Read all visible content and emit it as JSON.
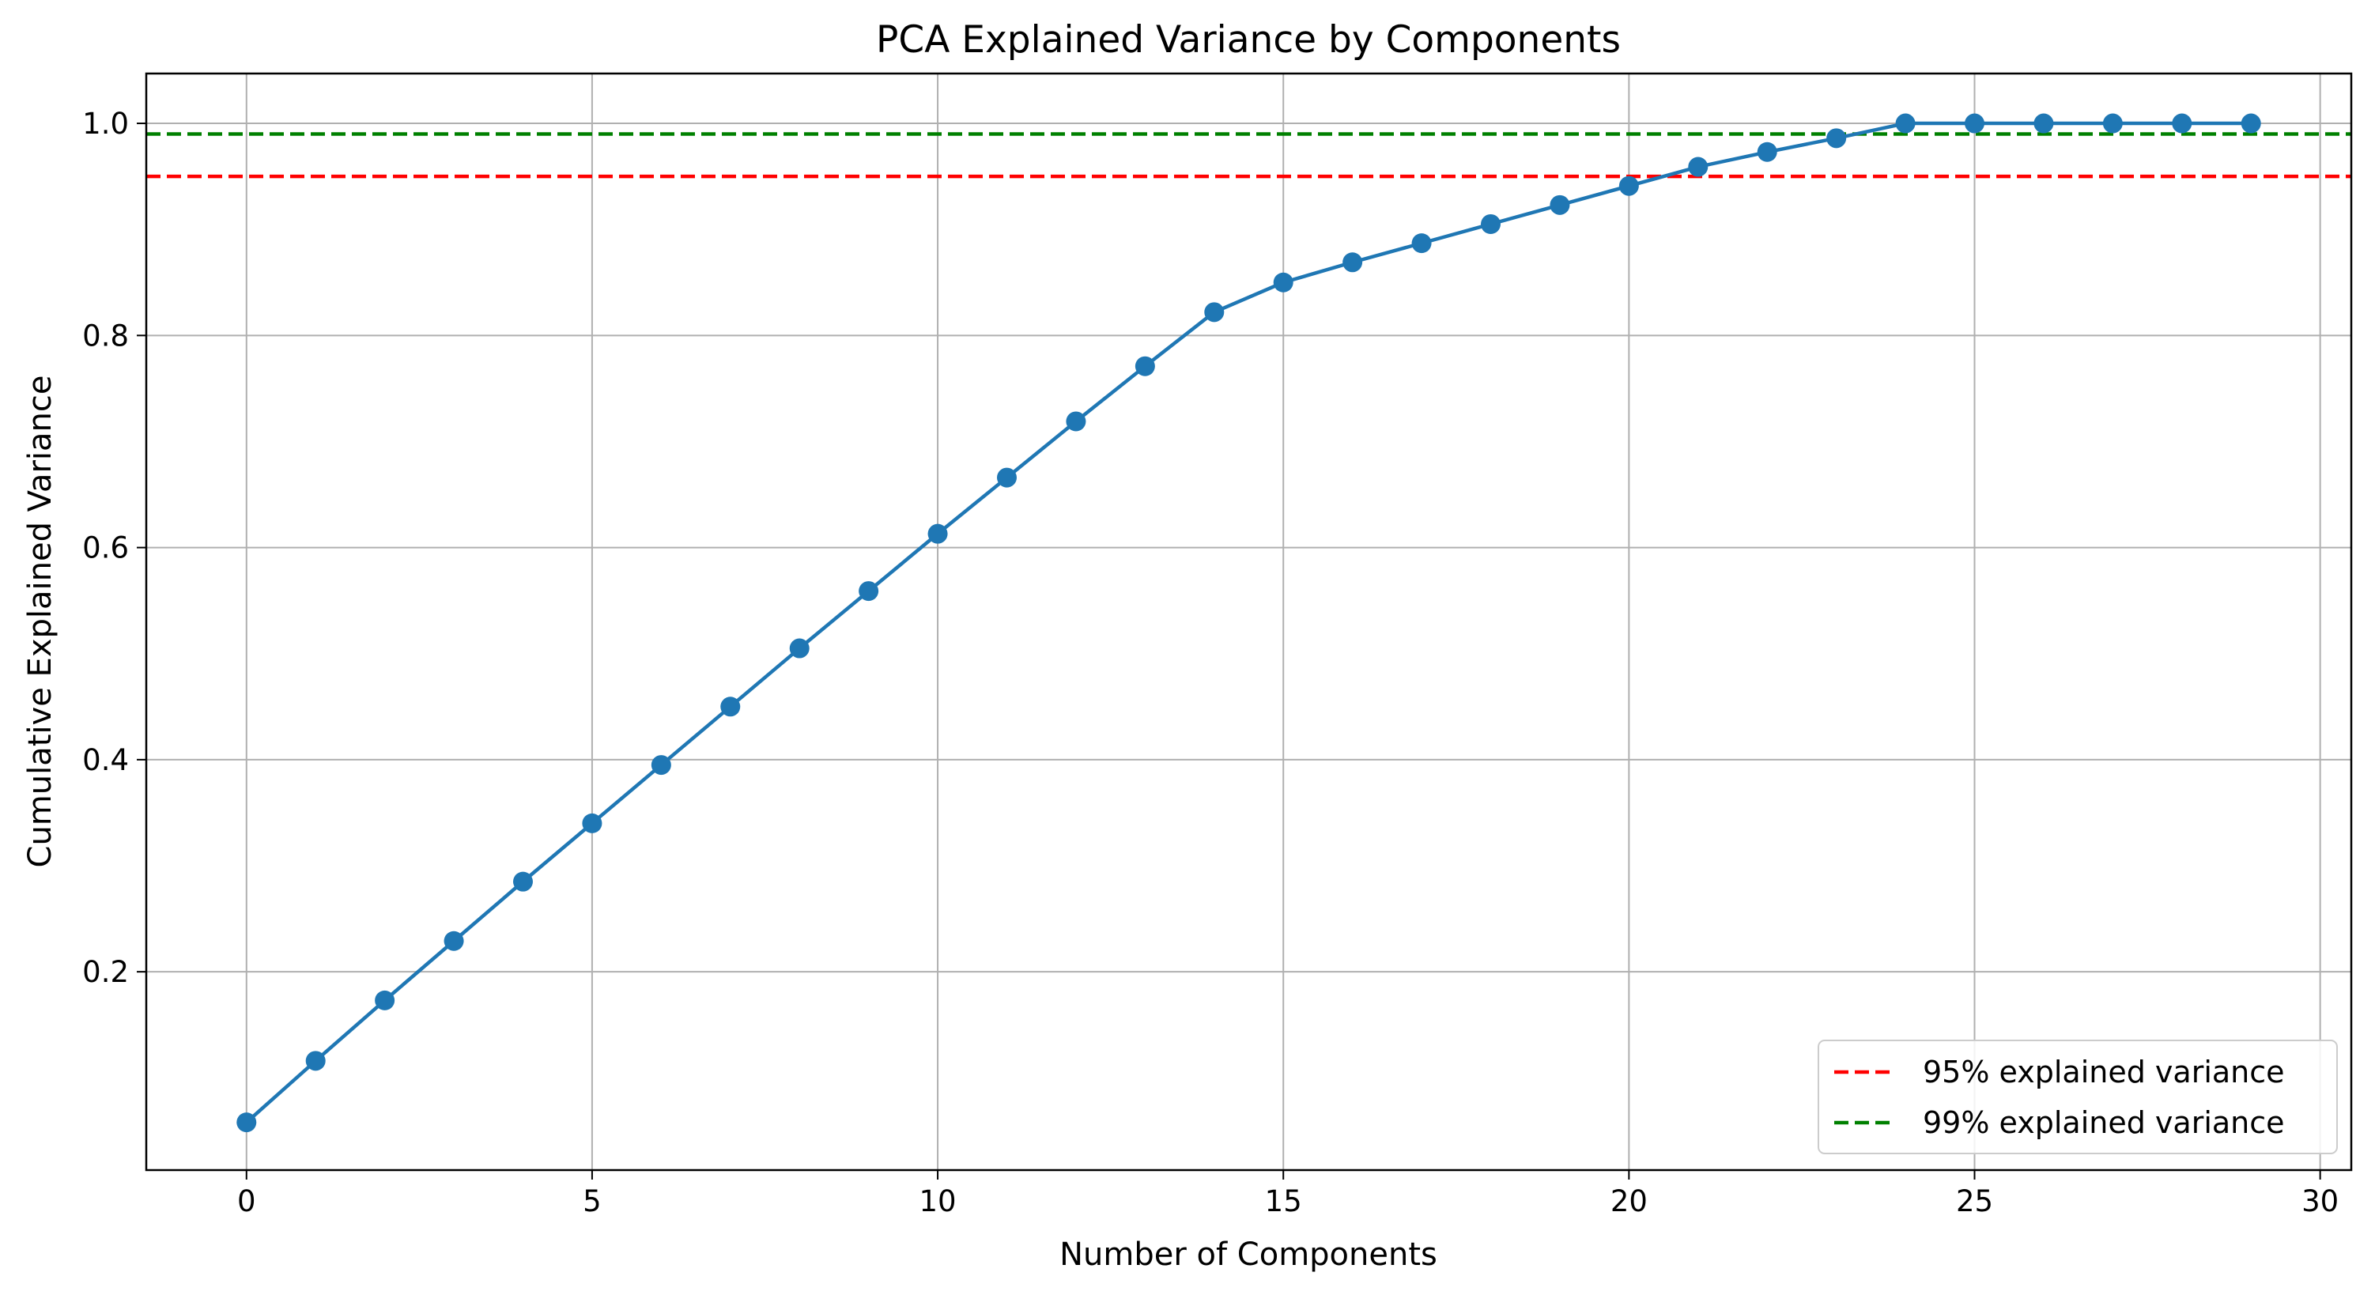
{
  "chart_data": {
    "type": "line",
    "title": "PCA Explained Variance by Components",
    "xlabel": "Number of Components",
    "ylabel": "Cumulative Explained Variance",
    "xlim": [
      -1.45,
      30.45
    ],
    "ylim": [
      0.013,
      1.047
    ],
    "xticks": [
      0,
      5,
      10,
      15,
      20,
      25,
      30
    ],
    "yticks": [
      0.2,
      0.4,
      0.6,
      0.8,
      1.0
    ],
    "ytick_labels": [
      "0.2",
      "0.4",
      "0.6",
      "0.8",
      "1.0"
    ],
    "grid": true,
    "legend_position": "lower-right",
    "series": [
      {
        "color": "#1f77b4",
        "marker": "circle",
        "x": [
          0,
          1,
          2,
          3,
          4,
          5,
          6,
          7,
          8,
          9,
          10,
          11,
          12,
          13,
          14,
          15,
          16,
          17,
          18,
          19,
          20,
          21,
          22,
          23,
          24,
          25,
          26,
          27,
          28,
          29
        ],
        "y": [
          0.058,
          0.116,
          0.173,
          0.229,
          0.285,
          0.34,
          0.395,
          0.45,
          0.505,
          0.559,
          0.613,
          0.666,
          0.719,
          0.771,
          0.822,
          0.85,
          0.869,
          0.887,
          0.905,
          0.923,
          0.941,
          0.959,
          0.973,
          0.986,
          1.0,
          1.0,
          1.0,
          1.0,
          1.0,
          1.0
        ]
      }
    ],
    "reference_lines": [
      {
        "name": "95% explained variance",
        "y": 0.95,
        "color": "#ff0000",
        "style": "dashed"
      },
      {
        "name": "99% explained variance",
        "y": 0.99,
        "color": "#008000",
        "style": "dashed"
      }
    ]
  }
}
